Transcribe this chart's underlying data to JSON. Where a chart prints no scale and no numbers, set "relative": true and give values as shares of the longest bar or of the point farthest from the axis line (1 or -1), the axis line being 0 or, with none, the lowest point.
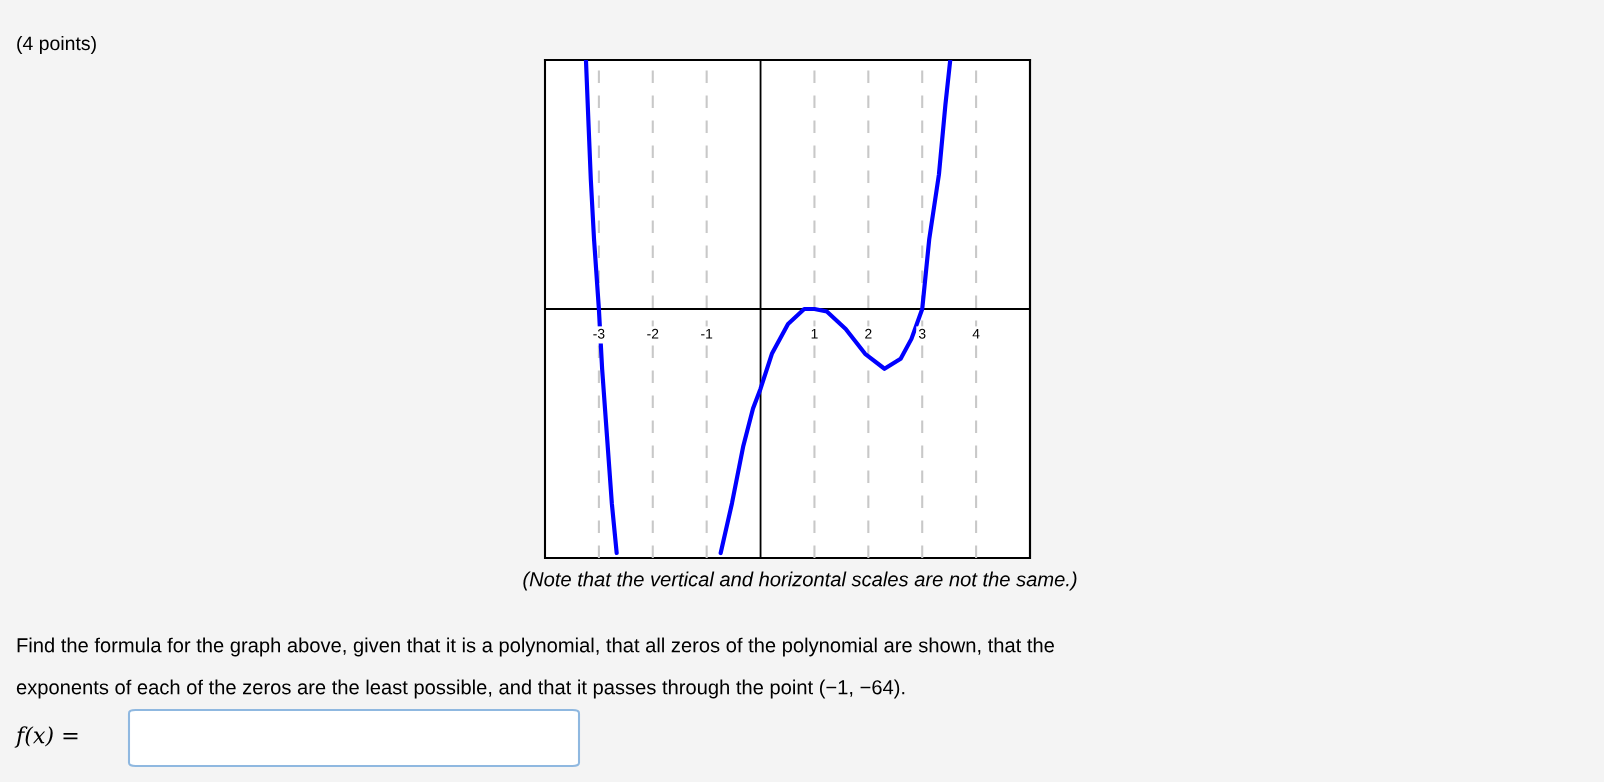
{
  "chart_data": {
    "type": "line",
    "title": "(4 points)",
    "relative": true,
    "xlim": [
      -4,
      5
    ],
    "xticks": [
      -3,
      -2,
      -1,
      1,
      2,
      3,
      4
    ],
    "grid": "x",
    "marker": "none",
    "line_style": "solid",
    "series": [
      {
        "color": "#0000ff",
        "x": [
          -3.24,
          -3.19,
          -3.15,
          -3.09,
          -3,
          -2.94,
          -2.85,
          -2.76,
          -2.67
        ],
        "values": [
          1.0,
          0.73,
          0.52,
          0.28,
          0,
          -0.24,
          -0.51,
          -0.78,
          -0.98
        ]
      },
      {
        "color": "#0000ff",
        "x": [
          -0.74,
          -0.53,
          -0.32,
          -0.14,
          0,
          0.21,
          0.51,
          0.81,
          1,
          1.23,
          1.58,
          1.94,
          2.3,
          2.6,
          2.8,
          3,
          3.13,
          3.31,
          3.43,
          3.52
        ],
        "values": [
          -0.98,
          -0.78,
          -0.55,
          -0.4,
          -0.32,
          -0.18,
          -0.06,
          0,
          0,
          -0.01,
          -0.08,
          -0.18,
          -0.24,
          -0.2,
          -0.12,
          0,
          0.28,
          0.54,
          0.82,
          1.0
        ]
      }
    ],
    "annotations": [
      "(Note that the vertical and horizontal scales are not the same.)",
      "Find the formula for the graph above, given that it is a polynomial, that all zeros of the polynomial are shown, that the",
      "exponents of each of the zeros are the least possible, and that it passes through the point (−1, −64).",
      "f(x) ="
    ]
  }
}
